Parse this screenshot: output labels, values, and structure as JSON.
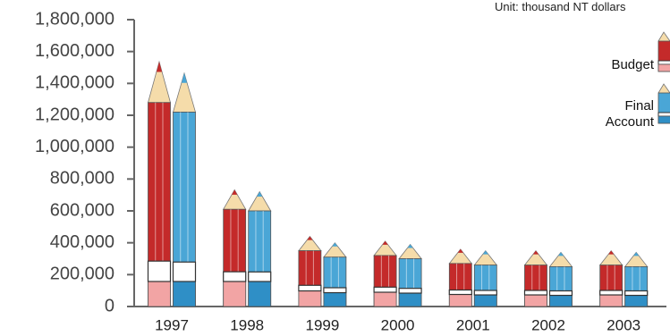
{
  "chart_data": {
    "type": "bar",
    "unit_note": "Unit: thousand NT dollars",
    "categories": [
      "1997",
      "1998",
      "1999",
      "2000",
      "2001",
      "2002",
      "2003"
    ],
    "series": [
      {
        "name": "Budget",
        "color": "#c42a2a",
        "values": [
          1280000,
          610000,
          350000,
          320000,
          270000,
          260000,
          260000
        ]
      },
      {
        "name": "Final Account",
        "color": "#4aa6d6",
        "values": [
          1220000,
          600000,
          310000,
          300000,
          260000,
          250000,
          250000
        ]
      }
    ],
    "ylim": [
      0,
      1800000
    ],
    "yticks": [
      0,
      {
        "value": 200000,
        "label": "200,000"
      },
      {
        "value": 400000,
        "label": "400,000"
      },
      {
        "value": 600000,
        "label": "600,000"
      },
      {
        "value": 800000,
        "label": "800,000"
      },
      {
        "value": 1000000,
        "label": "1,000,000"
      },
      {
        "value": 1200000,
        "label": "1,200,000"
      },
      {
        "value": 1400000,
        "label": "1,400,000"
      },
      {
        "value": 1600000,
        "label": "1,600,000"
      },
      {
        "value": 1800000,
        "label": "1,800,000"
      }
    ]
  }
}
